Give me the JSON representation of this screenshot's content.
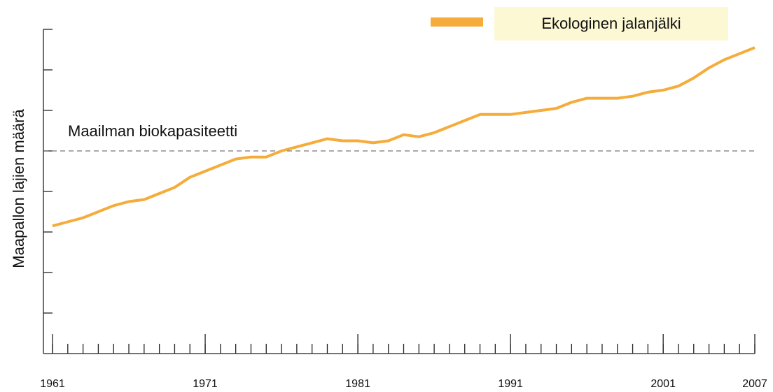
{
  "chart_data": {
    "type": "line",
    "y_axis_label": "Maapallon lajien määrä",
    "x": [
      1961,
      1962,
      1963,
      1964,
      1965,
      1966,
      1967,
      1968,
      1969,
      1970,
      1971,
      1972,
      1973,
      1974,
      1975,
      1976,
      1977,
      1978,
      1979,
      1980,
      1981,
      1982,
      1983,
      1984,
      1985,
      1986,
      1987,
      1988,
      1989,
      1990,
      1991,
      1992,
      1993,
      1994,
      1995,
      1996,
      1997,
      1998,
      1999,
      2000,
      2001,
      2002,
      2003,
      2004,
      2005,
      2006,
      2007
    ],
    "series": [
      {
        "name": "Ekologinen jalanjälki",
        "color": "#f5ac3a",
        "values": [
          0.63,
          0.65,
          0.67,
          0.7,
          0.73,
          0.75,
          0.76,
          0.79,
          0.82,
          0.87,
          0.9,
          0.93,
          0.96,
          0.97,
          0.97,
          1.0,
          1.02,
          1.04,
          1.06,
          1.05,
          1.05,
          1.04,
          1.05,
          1.08,
          1.07,
          1.09,
          1.12,
          1.15,
          1.18,
          1.18,
          1.18,
          1.19,
          1.2,
          1.21,
          1.24,
          1.26,
          1.26,
          1.26,
          1.27,
          1.29,
          1.3,
          1.32,
          1.36,
          1.41,
          1.45,
          1.48,
          1.51
        ]
      }
    ],
    "xlim": [
      1961,
      2007
    ],
    "xticks": [
      1961,
      1971,
      1981,
      1991,
      2001,
      2007
    ],
    "x_minor_tick_step": 1,
    "ylim": [
      0,
      1.6
    ],
    "yticks": [
      0.2,
      0.4,
      0.6,
      0.8,
      1,
      1.2,
      1.4,
      1.6
    ],
    "reference_line": {
      "value": 1,
      "label": "Maailman biokapasiteetti"
    },
    "legend": "top-right"
  }
}
